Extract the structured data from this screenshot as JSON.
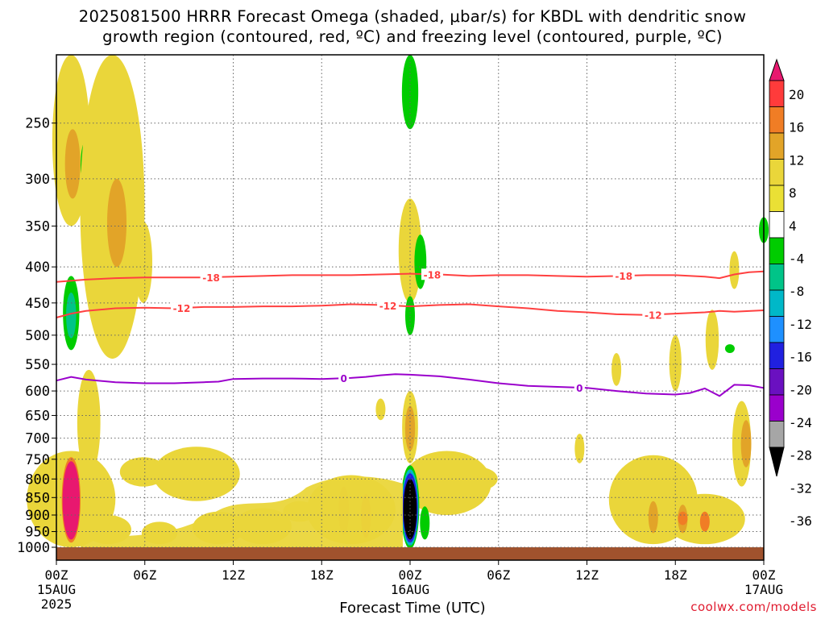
{
  "title": {
    "line1": "2025081500 HRRR Forecast Omega (shaded, μbar/s) for KBDL with dendritic snow",
    "line2": "growth region (contoured, red, ºC) and freezing level (contoured, purple, ºC)"
  },
  "xlabel": "Forecast Time (UTC)",
  "credit": "coolwx.com/models",
  "colors": {
    "dgz": "#ff3333",
    "freezing": "#9a00cc",
    "ground": "#a0522d",
    "grid": "#888888"
  },
  "chart_data": {
    "type": "heatmap",
    "y_scale": "log-pressure",
    "ylim": [
      1000,
      200
    ],
    "xlim_hours": [
      0,
      48
    ],
    "y_ticks": [
      250,
      300,
      350,
      400,
      450,
      500,
      550,
      600,
      650,
      700,
      750,
      800,
      850,
      900,
      950,
      1000
    ],
    "x_ticks": [
      {
        "hour": 0,
        "label": "00Z",
        "sub1": "15AUG",
        "sub2": "2025"
      },
      {
        "hour": 6,
        "label": "06Z",
        "sub1": "",
        "sub2": ""
      },
      {
        "hour": 12,
        "label": "12Z",
        "sub1": "",
        "sub2": ""
      },
      {
        "hour": 18,
        "label": "18Z",
        "sub1": "",
        "sub2": ""
      },
      {
        "hour": 24,
        "label": "00Z",
        "sub1": "16AUG",
        "sub2": ""
      },
      {
        "hour": 30,
        "label": "06Z",
        "sub1": "",
        "sub2": ""
      },
      {
        "hour": 36,
        "label": "12Z",
        "sub1": "",
        "sub2": ""
      },
      {
        "hour": 42,
        "label": "18Z",
        "sub1": "",
        "sub2": ""
      },
      {
        "hour": 48,
        "label": "00Z",
        "sub1": "17AUG",
        "sub2": ""
      }
    ],
    "colorbar": {
      "labels": [
        "20",
        "16",
        "12",
        "8",
        "4",
        "-4",
        "-8",
        "-12",
        "-16",
        "-20",
        "-24",
        "-28",
        "-32",
        "-36"
      ],
      "colors": [
        "#e8186f",
        "#ff3b3b",
        "#f07d25",
        "#e2a428",
        "#ead63a",
        "#eae035",
        "#ffffff",
        "#00cc00",
        "#00c488",
        "#00b8c8",
        "#1e90ff",
        "#2020e0",
        "#6a10c0",
        "#9a00cc",
        "#a6a6a6",
        "#000000"
      ]
    },
    "contours": [
      {
        "name": "-18",
        "color": "#ff4040",
        "labels": [
          {
            "hour": 10.5,
            "text": "-18"
          },
          {
            "hour": 25.5,
            "text": "-18"
          },
          {
            "hour": 38.5,
            "text": "-18"
          }
        ],
        "points": [
          [
            0,
            420
          ],
          [
            2,
            417
          ],
          [
            4,
            415
          ],
          [
            6,
            414
          ],
          [
            8,
            414
          ],
          [
            10,
            414
          ],
          [
            12,
            413
          ],
          [
            14,
            412
          ],
          [
            16,
            411
          ],
          [
            18,
            411
          ],
          [
            20,
            411
          ],
          [
            22,
            410
          ],
          [
            24,
            409
          ],
          [
            26,
            410
          ],
          [
            28,
            412
          ],
          [
            30,
            411
          ],
          [
            32,
            411
          ],
          [
            34,
            412
          ],
          [
            36,
            413
          ],
          [
            38,
            412
          ],
          [
            40,
            411
          ],
          [
            42,
            411
          ],
          [
            44,
            413
          ],
          [
            45,
            415
          ],
          [
            46,
            410
          ],
          [
            47,
            407
          ],
          [
            48,
            406
          ]
        ]
      },
      {
        "name": "-12",
        "color": "#ff4040",
        "labels": [
          {
            "hour": 8.5,
            "text": "-12"
          },
          {
            "hour": 22.5,
            "text": "-12"
          },
          {
            "hour": 40.5,
            "text": "-12"
          }
        ],
        "points": [
          [
            0,
            472
          ],
          [
            1,
            466
          ],
          [
            2,
            462
          ],
          [
            4,
            458
          ],
          [
            6,
            457
          ],
          [
            8,
            458
          ],
          [
            10,
            456
          ],
          [
            12,
            456
          ],
          [
            14,
            455
          ],
          [
            16,
            455
          ],
          [
            18,
            454
          ],
          [
            20,
            452
          ],
          [
            22,
            453
          ],
          [
            24,
            455
          ],
          [
            26,
            453
          ],
          [
            28,
            452
          ],
          [
            30,
            455
          ],
          [
            32,
            458
          ],
          [
            34,
            462
          ],
          [
            36,
            464
          ],
          [
            38,
            467
          ],
          [
            40,
            468
          ],
          [
            42,
            466
          ],
          [
            44,
            464
          ],
          [
            45,
            462
          ],
          [
            46,
            463
          ],
          [
            48,
            461
          ]
        ]
      },
      {
        "name": "0",
        "color": "#9a00cc",
        "labels": [
          {
            "hour": 19.5,
            "text": "0"
          },
          {
            "hour": 35.5,
            "text": "0"
          }
        ],
        "points": [
          [
            0,
            580
          ],
          [
            1,
            573
          ],
          [
            2,
            578
          ],
          [
            4,
            583
          ],
          [
            6,
            585
          ],
          [
            8,
            585
          ],
          [
            10,
            583
          ],
          [
            11,
            582
          ],
          [
            12,
            577
          ],
          [
            14,
            576
          ],
          [
            16,
            576
          ],
          [
            18,
            577
          ],
          [
            20,
            575
          ],
          [
            21,
            573
          ],
          [
            22,
            570
          ],
          [
            23,
            568
          ],
          [
            24,
            569
          ],
          [
            26,
            572
          ],
          [
            28,
            578
          ],
          [
            30,
            585
          ],
          [
            32,
            590
          ],
          [
            34,
            592
          ],
          [
            36,
            594
          ],
          [
            38,
            600
          ],
          [
            40,
            605
          ],
          [
            42,
            607
          ],
          [
            43,
            604
          ],
          [
            44,
            595
          ],
          [
            45,
            610
          ],
          [
            46,
            588
          ],
          [
            47,
            589
          ],
          [
            48,
            594
          ]
        ]
      }
    ],
    "blobs": [
      {
        "hour": 1.0,
        "p_top": 200,
        "p_bot": 350,
        "level": 4
      },
      {
        "hour": 1.1,
        "p_top": 255,
        "p_bot": 320,
        "level": 8
      },
      {
        "hour": 2.0,
        "p_top": 265,
        "p_bot": 310,
        "level": -4
      },
      {
        "hour": 3.8,
        "p_top": 200,
        "p_bot": 540,
        "level": 4
      },
      {
        "hour": 4.1,
        "p_top": 300,
        "p_bot": 400,
        "level": 8
      },
      {
        "hour": 5.9,
        "p_top": 345,
        "p_bot": 450,
        "level": 4
      },
      {
        "hour": 1.0,
        "p_top": 412,
        "p_bot": 525,
        "level": -4
      },
      {
        "hour": 1.0,
        "p_top": 435,
        "p_bot": 505,
        "level": -12
      },
      {
        "hour": 2.2,
        "p_top": 560,
        "p_bot": 790,
        "level": 4
      },
      {
        "hour": 5.9,
        "p_top": 745,
        "p_bot": 820,
        "level": 4
      },
      {
        "hour": 9.5,
        "p_top": 720,
        "p_bot": 860,
        "level": 4
      },
      {
        "hour": 3.5,
        "p_top": 900,
        "p_bot": 990,
        "level": 4
      },
      {
        "hour": 7.0,
        "p_top": 920,
        "p_bot": 990,
        "level": 4
      },
      {
        "hour": 11.0,
        "p_top": 890,
        "p_bot": 990,
        "level": 4
      },
      {
        "hour": 14.0,
        "p_top": 880,
        "p_bot": 990,
        "level": 4
      },
      {
        "hour": 20.0,
        "p_top": 790,
        "p_bot": 990,
        "level": 4
      },
      {
        "hour": 19.5,
        "p_top": 820,
        "p_bot": 960,
        "level": 8
      },
      {
        "hour": 21.0,
        "p_top": 840,
        "p_bot": 970,
        "level": 12
      },
      {
        "hour": 16.5,
        "p_top": 860,
        "p_bot": 920,
        "level": 4
      },
      {
        "hour": 24.0,
        "p_top": 200,
        "p_bot": 255,
        "level": -4
      },
      {
        "hour": 24.0,
        "p_top": 320,
        "p_bot": 450,
        "level": 4
      },
      {
        "hour": 24.7,
        "p_top": 360,
        "p_bot": 430,
        "level": -4
      },
      {
        "hour": 24.0,
        "p_top": 440,
        "p_bot": 500,
        "level": -4
      },
      {
        "hour": 22.0,
        "p_top": 615,
        "p_bot": 660,
        "level": 4
      },
      {
        "hour": 24.0,
        "p_top": 600,
        "p_bot": 760,
        "level": 4
      },
      {
        "hour": 24.0,
        "p_top": 630,
        "p_bot": 730,
        "level": 8
      },
      {
        "hour": 26.5,
        "p_top": 730,
        "p_bot": 900,
        "level": 4
      },
      {
        "hour": 25.0,
        "p_top": 875,
        "p_bot": 975,
        "level": -4
      },
      {
        "hour": 24.0,
        "p_top": 765,
        "p_bot": 1005,
        "level": -4
      },
      {
        "hour": 24.0,
        "p_top": 775,
        "p_bot": 995,
        "level": -16
      },
      {
        "hour": 24.0,
        "p_top": 785,
        "p_bot": 985,
        "level": -24
      },
      {
        "hour": 24.0,
        "p_top": 800,
        "p_bot": 975,
        "level": -36
      },
      {
        "hour": 28.7,
        "p_top": 770,
        "p_bot": 830,
        "level": 4
      },
      {
        "hour": 35.5,
        "p_top": 690,
        "p_bot": 760,
        "level": 4
      },
      {
        "hour": 38.0,
        "p_top": 530,
        "p_bot": 590,
        "level": 4
      },
      {
        "hour": 42.0,
        "p_top": 500,
        "p_bot": 600,
        "level": 4
      },
      {
        "hour": 40.5,
        "p_top": 740,
        "p_bot": 990,
        "level": 4
      },
      {
        "hour": 40.5,
        "p_top": 860,
        "p_bot": 955,
        "level": 8
      },
      {
        "hour": 44.0,
        "p_top": 840,
        "p_bot": 990,
        "level": 4
      },
      {
        "hour": 42.5,
        "p_top": 870,
        "p_bot": 955,
        "level": 8
      },
      {
        "hour": 44.0,
        "p_top": 890,
        "p_bot": 950,
        "level": 12
      },
      {
        "hour": 42.5,
        "p_top": 890,
        "p_bot": 930,
        "level": 12
      },
      {
        "hour": 44.5,
        "p_top": 460,
        "p_bot": 560,
        "level": 4
      },
      {
        "hour": 45.7,
        "p_top": 515,
        "p_bot": 530,
        "level": -4
      },
      {
        "hour": 46.0,
        "p_top": 380,
        "p_bot": 430,
        "level": 4
      },
      {
        "hour": 46.5,
        "p_top": 620,
        "p_bot": 820,
        "level": 4
      },
      {
        "hour": 46.8,
        "p_top": 660,
        "p_bot": 770,
        "level": 8
      },
      {
        "hour": 48.0,
        "p_top": 340,
        "p_bot": 370,
        "level": -4
      }
    ],
    "low_level_fill": [
      {
        "hour": 1.0,
        "p_top": 730,
        "p_bot": 1000,
        "level": 4
      },
      {
        "hour": 1.0,
        "p_top": 745,
        "p_bot": 985,
        "level": 12
      },
      {
        "hour": 1.0,
        "p_top": 755,
        "p_bot": 975,
        "level": 20
      }
    ]
  }
}
